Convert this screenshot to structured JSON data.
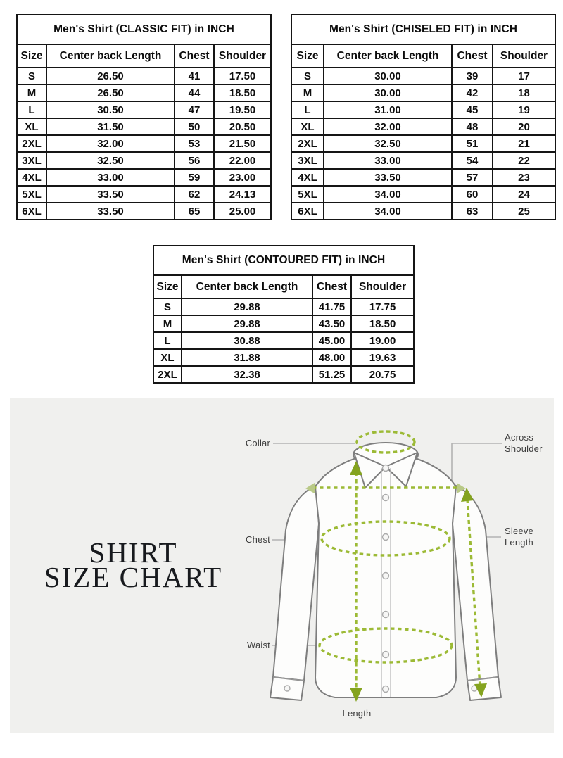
{
  "tables": [
    {
      "title": "Men's Shirt (CLASSIC FIT) in INCH",
      "columns": [
        "Size",
        "Center back Length",
        "Chest",
        "Shoulder"
      ],
      "rows": [
        [
          "S",
          "26.50",
          "41",
          "17.50"
        ],
        [
          "M",
          "26.50",
          "44",
          "18.50"
        ],
        [
          "L",
          "30.50",
          "47",
          "19.50"
        ],
        [
          "XL",
          "31.50",
          "50",
          "20.50"
        ],
        [
          "2XL",
          "32.00",
          "53",
          "21.50"
        ],
        [
          "3XL",
          "32.50",
          "56",
          "22.00"
        ],
        [
          "4XL",
          "33.00",
          "59",
          "23.00"
        ],
        [
          "5XL",
          "33.50",
          "62",
          "24.13"
        ],
        [
          "6XL",
          "33.50",
          "65",
          "25.00"
        ]
      ]
    },
    {
      "title": "Men's Shirt (CHISELED FIT) in INCH",
      "columns": [
        "Size",
        "Center back Length",
        "Chest",
        "Shoulder"
      ],
      "rows": [
        [
          "S",
          "30.00",
          "39",
          "17"
        ],
        [
          "M",
          "30.00",
          "42",
          "18"
        ],
        [
          "L",
          "31.00",
          "45",
          "19"
        ],
        [
          "XL",
          "32.00",
          "48",
          "20"
        ],
        [
          "2XL",
          "32.50",
          "51",
          "21"
        ],
        [
          "3XL",
          "33.00",
          "54",
          "22"
        ],
        [
          "4XL",
          "33.50",
          "57",
          "23"
        ],
        [
          "5XL",
          "34.00",
          "60",
          "24"
        ],
        [
          "6XL",
          "34.00",
          "63",
          "25"
        ]
      ]
    },
    {
      "title": "Men's Shirt (CONTOURED FIT) in INCH",
      "columns": [
        "Size",
        "Center back Length",
        "Chest",
        "Shoulder"
      ],
      "rows": [
        [
          "S",
          "29.88",
          "41.75",
          "17.75"
        ],
        [
          "M",
          "29.88",
          "43.50",
          "18.50"
        ],
        [
          "L",
          "30.88",
          "45.00",
          "19.00"
        ],
        [
          "XL",
          "31.88",
          "48.00",
          "19.63"
        ],
        [
          "2XL",
          "32.38",
          "51.25",
          "20.75"
        ]
      ]
    }
  ],
  "diagram": {
    "heading_line1": "SHIRT",
    "heading_line2": "SIZE CHART",
    "labels": {
      "collar": "Collar",
      "across_shoulder": "Across Shoulder",
      "chest": "Chest",
      "sleeve_length": "Sleeve Length",
      "waist": "Waist",
      "length": "Length"
    },
    "colors": {
      "panel_background": "#f0f0ee",
      "measure_green": "#9cba35",
      "arrow_green": "#84a31f",
      "shirt_outline_gray": "#7e7e7e",
      "pointer_line_gray": "#b3b3b3",
      "label_text": "#3c3c3c",
      "table_border": "#151515"
    }
  }
}
